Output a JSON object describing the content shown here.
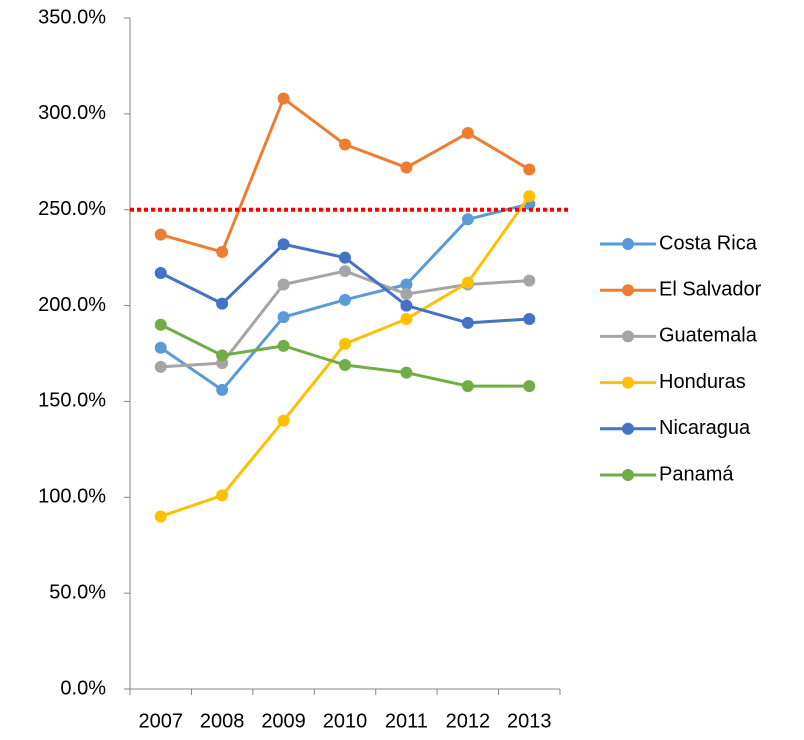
{
  "chart_data": {
    "type": "line",
    "categories": [
      "2007",
      "2008",
      "2009",
      "2010",
      "2011",
      "2012",
      "2013"
    ],
    "series": [
      {
        "name": "Costa Rica",
        "color": "#5b9bd5",
        "values": [
          178,
          156,
          194,
          203,
          211,
          245,
          253
        ]
      },
      {
        "name": "El Salvador",
        "color": "#ed7d31",
        "values": [
          237,
          228,
          308,
          284,
          272,
          290,
          271
        ]
      },
      {
        "name": "Guatemala",
        "color": "#a5a5a5",
        "values": [
          168,
          170,
          211,
          218,
          206,
          211,
          213
        ]
      },
      {
        "name": "Honduras",
        "color": "#ffc000",
        "values": [
          90,
          101,
          140,
          180,
          193,
          212,
          257
        ]
      },
      {
        "name": "Nicaragua",
        "color": "#4472c4",
        "values": [
          217,
          201,
          232,
          225,
          200,
          191,
          193
        ]
      },
      {
        "name": "Panamá",
        "color": "#70ad47",
        "values": [
          190,
          174,
          179,
          169,
          165,
          158,
          158
        ]
      }
    ],
    "ylim": [
      0,
      350
    ],
    "yticks": [
      {
        "value": 0,
        "label": "0.0%"
      },
      {
        "value": 50,
        "label": "50.0%"
      },
      {
        "value": 100,
        "label": "100.0%"
      },
      {
        "value": 150,
        "label": "150.0%"
      },
      {
        "value": 200,
        "label": "200.0%"
      },
      {
        "value": 250,
        "label": "250.0%"
      },
      {
        "value": 300,
        "label": "300.0%"
      },
      {
        "value": 350,
        "label": "350.0%"
      }
    ],
    "reference_line": {
      "value": 250,
      "color": "#ff0000"
    },
    "legend": "right",
    "grid": false
  }
}
